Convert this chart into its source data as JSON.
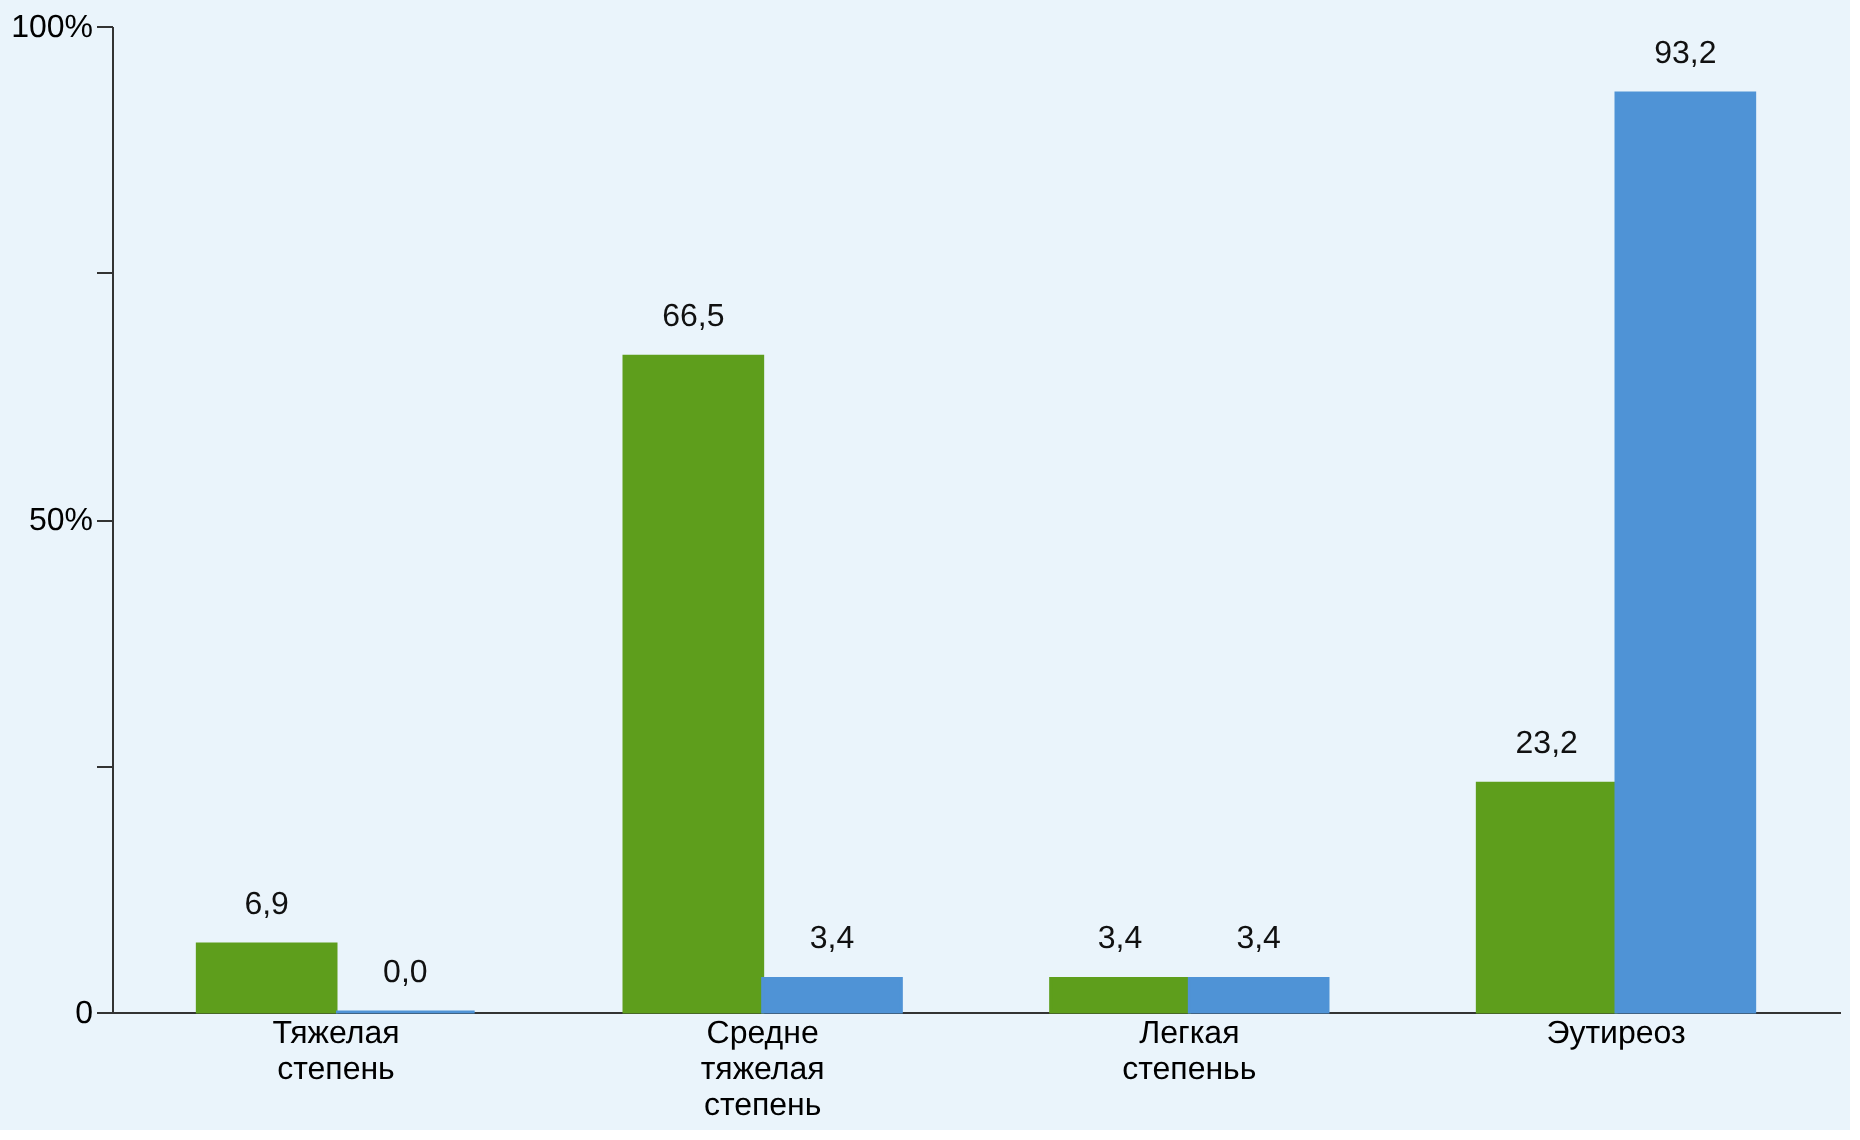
{
  "chart_data": {
    "type": "bar",
    "categories": [
      "Тяжелая степень",
      "Средне тяжелая степень",
      "Легкая степеньь",
      "Эутиреоз"
    ],
    "series": [
      {
        "color": "#5e9e1c",
        "values": [
          6.9,
          66.5,
          3.4,
          23.2
        ],
        "value_labels": [
          "6,9",
          "66,5",
          "3,4",
          "23,2"
        ]
      },
      {
        "color": "#4f93d6",
        "values": [
          0.0,
          3.4,
          3.4,
          93.2
        ],
        "value_labels": [
          "0,0",
          "3,4",
          "3,4",
          "93,2"
        ]
      }
    ],
    "ylim": [
      0,
      100
    ],
    "yticks": [
      0,
      {
        "value": 25,
        "label": null
      },
      {
        "value": 50,
        "label": "50%"
      },
      {
        "value": 75,
        "label": null
      },
      {
        "value": 100,
        "label": "100%"
      }
    ],
    "grid": false,
    "legend": false
  }
}
